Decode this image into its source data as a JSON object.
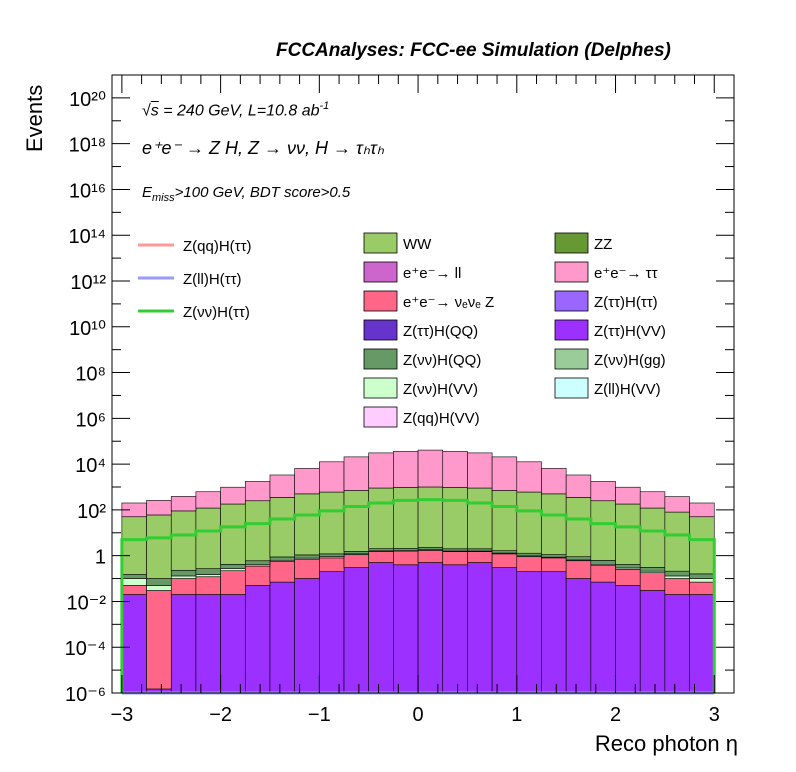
{
  "title": "FCCAnalyses: FCC-ee Simulation (Delphes)",
  "annotations": {
    "sqrt_s": "s",
    "energy_lumi": "= 240 GeV, L=10.8 ab",
    "lumi_exp": "-1",
    "process": "e⁺e⁻ → Z H, Z → νν, H → τₕτₕ",
    "cuts": "E",
    "cuts_sub": "miss",
    "cuts_rest": ">100 GeV, BDT score>0.5"
  },
  "chart_data": {
    "type": "bar",
    "stacked": true,
    "log_y": true,
    "xlabel": "Reco photon η",
    "ylabel": "Events",
    "xlim": [
      -3.1,
      3.2
    ],
    "ylim": [
      1e-06,
      1e+21
    ],
    "x_ticks": [
      "−3",
      "−2",
      "−1",
      "0",
      "1",
      "2",
      "3"
    ],
    "y_ticks": [
      "10⁻⁶",
      "10⁻⁴",
      "10⁻²",
      "1",
      "10²",
      "10⁴",
      "10⁶",
      "10⁸",
      "10¹⁰",
      "10¹²",
      "10¹⁴",
      "10¹⁶",
      "10¹⁸",
      "10²⁰"
    ],
    "bin_edges": [
      -3.0,
      -2.75,
      -2.5,
      -2.25,
      -2.0,
      -1.75,
      -1.5,
      -1.25,
      -1.0,
      -0.75,
      -0.5,
      -0.25,
      0.0,
      0.25,
      0.5,
      0.75,
      1.0,
      1.25,
      1.5,
      1.75,
      2.0,
      2.25,
      2.5,
      2.75,
      3.0
    ],
    "stack": [
      {
        "name": "Z(ττ)H(VV)",
        "color": "#9b30ff",
        "values": [
          0.02,
          5e-07,
          0.02,
          0.02,
          0.02,
          0.05,
          0.07,
          0.1,
          0.2,
          0.3,
          0.5,
          0.4,
          0.5,
          0.4,
          0.5,
          0.3,
          0.2,
          0.2,
          0.1,
          0.07,
          0.05,
          0.03,
          0.02,
          0.02
        ]
      },
      {
        "name": "e⁺e⁻ → νₑνₑ Z",
        "color": "#ff6688",
        "values": [
          0.03,
          0.03,
          0.08,
          0.1,
          0.2,
          0.3,
          0.5,
          0.6,
          0.6,
          0.8,
          1.0,
          1.1,
          1.2,
          1.1,
          1.0,
          0.9,
          0.7,
          0.6,
          0.5,
          0.3,
          0.2,
          0.15,
          0.08,
          0.05
        ]
      },
      {
        "name": "Z(νν)H(VV)",
        "color": "#ccffcc",
        "values": [
          0.05,
          0.02,
          0.03,
          0.03,
          0.05,
          0.05,
          0.06,
          0.08,
          0.1,
          0.1,
          0.12,
          0.15,
          0.12,
          0.1,
          0.1,
          0.1,
          0.08,
          0.06,
          0.05,
          0.05,
          0.04,
          0.03,
          0.03,
          0.03
        ]
      },
      {
        "name": "Z(νν)H(QQ)",
        "color": "#669966",
        "values": [
          0.05,
          0.05,
          0.1,
          0.12,
          0.15,
          0.2,
          0.25,
          0.3,
          0.3,
          0.35,
          0.4,
          0.4,
          0.45,
          0.4,
          0.4,
          0.35,
          0.3,
          0.25,
          0.25,
          0.2,
          0.12,
          0.1,
          0.08,
          0.06
        ]
      },
      {
        "name": "WW",
        "color": "#99cc66",
        "values": [
          50,
          60,
          90,
          120,
          180,
          250,
          350,
          500,
          600,
          700,
          900,
          950,
          1000,
          950,
          900,
          700,
          600,
          500,
          350,
          250,
          180,
          120,
          80,
          50
        ]
      },
      {
        "name": "e⁺e⁻ → ττ",
        "color": "#ff99cc",
        "values": [
          150,
          200,
          300,
          500,
          800,
          1500,
          3000,
          6000,
          12000,
          20000,
          30000,
          35000,
          40000,
          35000,
          30000,
          20000,
          12000,
          6000,
          3000,
          1500,
          800,
          500,
          300,
          150
        ]
      }
    ],
    "signals": [
      {
        "name": "Z(qq)H(ττ)",
        "color": "#ff9999",
        "values": [
          5e-07,
          5e-07,
          5e-07,
          5e-07,
          5e-07,
          5e-07,
          5e-07,
          5e-07,
          5e-07,
          5e-07,
          5e-07,
          5e-07,
          5e-07,
          5e-07,
          5e-07,
          5e-07,
          5e-07,
          5e-07,
          5e-07,
          5e-07,
          5e-07,
          5e-07,
          5e-07,
          5e-07
        ]
      },
      {
        "name": "Z(ll)H(ττ)",
        "color": "#9999ff",
        "values": [
          5e-07,
          5e-07,
          5e-07,
          5e-07,
          5e-07,
          5e-07,
          5e-07,
          5e-07,
          5e-07,
          5e-07,
          5e-07,
          5e-07,
          5e-07,
          5e-07,
          5e-07,
          5e-07,
          5e-07,
          5e-07,
          5e-07,
          5e-07,
          5e-07,
          5e-07,
          5e-07,
          5e-07
        ]
      },
      {
        "name": "Z(νν)H(ττ)",
        "color": "#33cc33",
        "values": [
          5,
          6,
          8,
          12,
          18,
          25,
          40,
          60,
          90,
          140,
          200,
          260,
          280,
          260,
          200,
          140,
          90,
          60,
          40,
          25,
          18,
          12,
          8,
          5
        ]
      }
    ],
    "legend_left": [
      {
        "name": "Z(qq)H(ττ)",
        "color": "#ff9999"
      },
      {
        "name": "Z(ll)H(ττ)",
        "color": "#9999ff"
      },
      {
        "name": "Z(νν)H(ττ)",
        "color": "#33cc33"
      }
    ],
    "legend_boxes": [
      {
        "name": "WW",
        "color": "#99cc66"
      },
      {
        "name": "ZZ",
        "color": "#669933"
      },
      {
        "name": "e⁺e⁻→ ll",
        "color": "#cc66cc"
      },
      {
        "name": "e⁺e⁻→ ττ",
        "color": "#ff99cc"
      },
      {
        "name": "e⁺e⁻→ νₑνₑ Z",
        "color": "#ff6688"
      },
      {
        "name": "Z(ττ)H(ττ)",
        "color": "#9966ff"
      },
      {
        "name": "Z(ττ)H(QQ)",
        "color": "#6633cc"
      },
      {
        "name": "Z(ττ)H(VV)",
        "color": "#9b30ff"
      },
      {
        "name": "Z(νν)H(QQ)",
        "color": "#669966"
      },
      {
        "name": "Z(νν)H(gg)",
        "color": "#99cc99"
      },
      {
        "name": "Z(νν)H(VV)",
        "color": "#ccffcc"
      },
      {
        "name": "Z(ll)H(VV)",
        "color": "#ccffff"
      },
      {
        "name": "Z(qq)H(VV)",
        "color": "#ffccff"
      }
    ]
  }
}
